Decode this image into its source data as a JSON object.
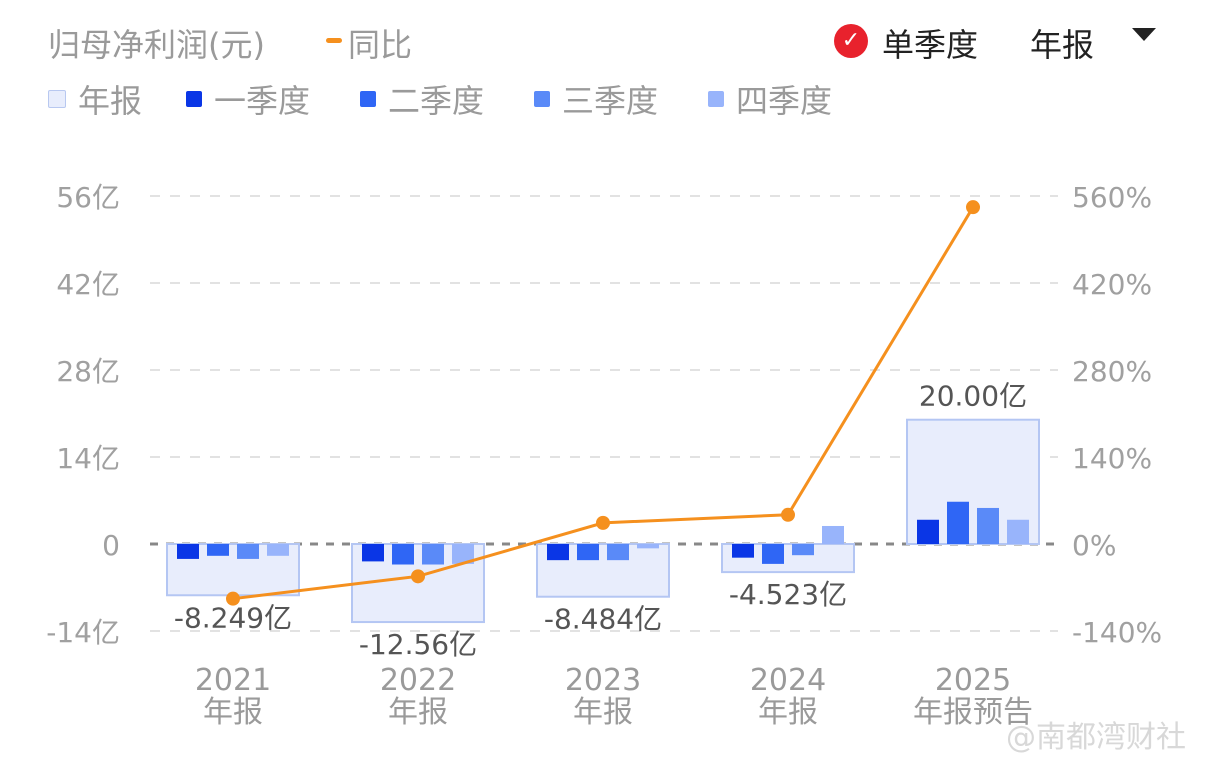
{
  "header": {
    "title": "归母净利润(元)",
    "yoy_legend": "同比",
    "toggle_label": "单季度",
    "period_select": "年报",
    "toggle_checked": true
  },
  "legend": [
    {
      "label": "年报",
      "color": "#e8edfc"
    },
    {
      "label": "一季度",
      "color": "#0a36e6"
    },
    {
      "label": "二季度",
      "color": "#2f66f5"
    },
    {
      "label": "三季度",
      "color": "#5a8af8"
    },
    {
      "label": "四季度",
      "color": "#98b4fb"
    }
  ],
  "watermark": "@南都湾财社",
  "chart_data": {
    "type": "bar+line",
    "categories": [
      [
        "2021",
        "年报"
      ],
      [
        "2022",
        "年报"
      ],
      [
        "2023",
        "年报"
      ],
      [
        "2024",
        "年报"
      ],
      [
        "2025",
        "年报预告"
      ]
    ],
    "annual": {
      "name": "年报",
      "values": [
        -8.249,
        -12.56,
        -8.484,
        -4.523,
        20.0
      ],
      "labels": [
        "-8.249亿",
        "-12.56亿",
        "-8.484亿",
        "-4.523亿",
        "20.00亿"
      ]
    },
    "quarters": [
      {
        "name": "一季度",
        "values": [
          -2.4,
          -2.8,
          -2.6,
          -2.2,
          3.9
        ]
      },
      {
        "name": "二季度",
        "values": [
          -1.9,
          -3.3,
          -2.6,
          -3.2,
          6.8
        ]
      },
      {
        "name": "三季度",
        "values": [
          -2.4,
          -3.3,
          -2.6,
          -1.8,
          5.8
        ]
      },
      {
        "name": "四季度",
        "values": [
          -1.9,
          -3.2,
          -0.7,
          2.9,
          3.9
        ]
      }
    ],
    "yoy": {
      "name": "同比",
      "unit": "%",
      "values": [
        -88,
        -52,
        34,
        47,
        542
      ],
      "color": "#f5901e"
    },
    "left_axis": {
      "unit": "亿",
      "ticks": [
        "56亿",
        "42亿",
        "28亿",
        "14亿",
        "0",
        "-14亿"
      ],
      "range": [
        -14,
        56
      ]
    },
    "right_axis": {
      "unit": "%",
      "ticks": [
        "560%",
        "420%",
        "280%",
        "140%",
        "0%",
        "-140%"
      ],
      "range": [
        -140,
        560
      ]
    },
    "grid": true
  }
}
